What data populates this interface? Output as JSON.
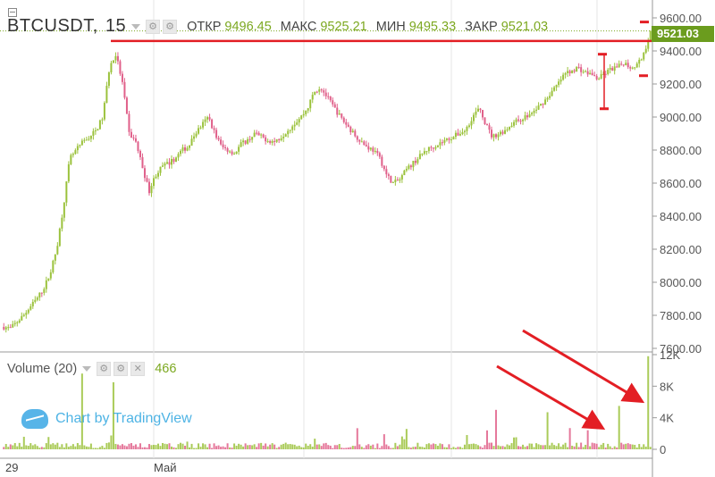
{
  "header": {
    "symbol": "BTCUSDT",
    "interval": "15",
    "open_label": "ОТКР",
    "open": "9496.45",
    "high_label": "МАКС",
    "high": "9525.21",
    "low_label": "МИН",
    "low": "9495.33",
    "close_label": "ЗАКР",
    "close": "9521.03"
  },
  "volume_pane": {
    "title": "Volume (20)",
    "value": "466"
  },
  "watermark": "Chart by TradingView",
  "last_price_tag": "9521.03",
  "colors": {
    "up": "#9bc23c",
    "down": "#e0608a",
    "annotation": "#e31e24",
    "price_tag": "#6b9c1e"
  },
  "chart_data": [
    {
      "type": "candlestick",
      "name": "price",
      "ylim": [
        7600,
        9600
      ],
      "y_ticks": [
        "9600.00",
        "9400.00",
        "9200.00",
        "9000.00",
        "8800.00",
        "8600.00",
        "8400.00",
        "8200.00",
        "8000.00",
        "7800.00",
        "7600.00"
      ],
      "x_tick_labels": [
        "29",
        "Май"
      ],
      "close_path": [
        7730,
        7720,
        7760,
        7800,
        7850,
        7900,
        7960,
        8050,
        8200,
        8450,
        8750,
        8800,
        8850,
        8880,
        8920,
        9000,
        9300,
        9380,
        9200,
        8900,
        8850,
        8700,
        8550,
        8650,
        8700,
        8720,
        8750,
        8800,
        8820,
        8900,
        8950,
        9000,
        8900,
        8820,
        8800,
        8780,
        8840,
        8860,
        8900,
        8880,
        8860,
        8850,
        8880,
        8920,
        8960,
        9000,
        9050,
        9150,
        9180,
        9120,
        9060,
        9000,
        8950,
        8900,
        8860,
        8820,
        8800,
        8750,
        8650,
        8600,
        8620,
        8680,
        8720,
        8760,
        8800,
        8820,
        8840,
        8860,
        8880,
        8900,
        8920,
        9000,
        9050,
        8960,
        8880,
        8900,
        8920,
        8960,
        8980,
        9000,
        9020,
        9060,
        9100,
        9150,
        9200,
        9260,
        9280,
        9300,
        9270,
        9260,
        9230,
        9260,
        9290,
        9300,
        9330,
        9300,
        9320,
        9380,
        9521.03
      ],
      "annotations": [
        {
          "type": "horizontal-line",
          "price": 9460
        },
        {
          "type": "marker",
          "price": 9380
        },
        {
          "type": "marker",
          "price": 9050
        },
        {
          "type": "marker",
          "price": 9250
        },
        {
          "type": "marker",
          "price": 9575
        }
      ]
    },
    {
      "type": "bar",
      "name": "volume",
      "ylim": [
        0,
        12000
      ],
      "y_ticks": [
        "12K",
        "8K",
        "4K",
        "0"
      ],
      "last_value": 466,
      "spikes": [
        {
          "pos": 0.12,
          "value": 9600
        },
        {
          "pos": 0.17,
          "value": 8500
        },
        {
          "pos": 0.76,
          "value": 5000
        },
        {
          "pos": 0.84,
          "value": 4700
        },
        {
          "pos": 0.95,
          "value": 5500
        },
        {
          "pos": 0.995,
          "value": 11800
        }
      ]
    }
  ]
}
